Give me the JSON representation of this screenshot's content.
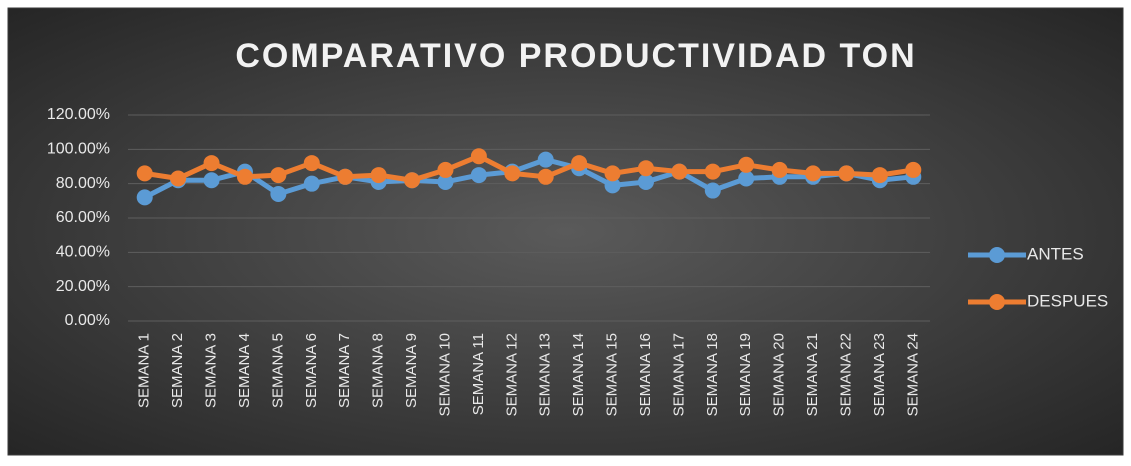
{
  "chart_data": {
    "type": "line",
    "title": "COMPARATIVO PRODUCTIVIDAD TON",
    "categories": [
      "SEMANA 1",
      "SEMANA 2",
      "SEMANA 3",
      "SEMANA 4",
      "SEMANA 5",
      "SEMANA 6",
      "SEMANA 7",
      "SEMANA 8",
      "SEMANA 9",
      "SEMANA 10",
      "SEMANA 11",
      "SEMANA 12",
      "SEMANA 13",
      "SEMANA 14",
      "SEMANA 15",
      "SEMANA 16",
      "SEMANA 17",
      "SEMANA 18",
      "SEMANA 19",
      "SEMANA 20",
      "SEMANA 21",
      "SEMANA 22",
      "SEMANA 23",
      "SEMANA 24"
    ],
    "series": [
      {
        "name": "ANTES",
        "color": "#5b9bd5",
        "values": [
          72,
          82,
          82,
          87,
          74,
          80,
          84,
          81,
          82,
          81,
          85,
          87,
          94,
          89,
          79,
          81,
          87,
          76,
          83,
          84,
          84,
          86,
          82,
          84
        ]
      },
      {
        "name": "DESPUES",
        "color": "#ed7d31",
        "values": [
          86,
          83,
          92,
          84,
          85,
          92,
          84,
          85,
          82,
          88,
          96,
          86,
          84,
          92,
          86,
          89,
          87,
          87,
          91,
          88,
          86,
          86,
          85,
          88
        ]
      }
    ],
    "ylim": [
      0,
      120
    ],
    "yticks": [
      {
        "value": 0,
        "label": "0.00%"
      },
      {
        "value": 20,
        "label": "20.00%"
      },
      {
        "value": 40,
        "label": "40.00%"
      },
      {
        "value": 60,
        "label": "60.00%"
      },
      {
        "value": 80,
        "label": "80.00%"
      },
      {
        "value": 100,
        "label": "100.00%"
      },
      {
        "value": 120,
        "label": "120.00%"
      }
    ],
    "grid": true,
    "legend": "right"
  }
}
